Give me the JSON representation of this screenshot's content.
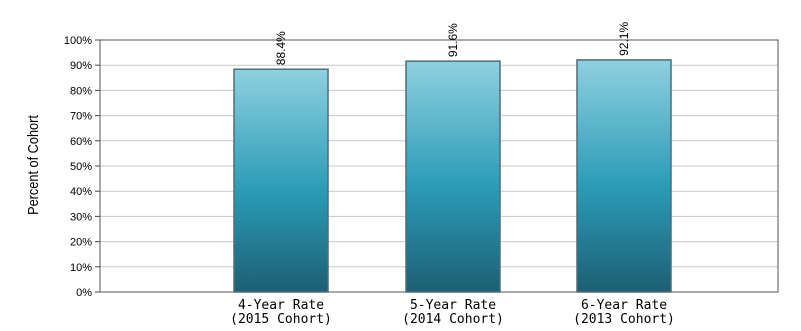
{
  "chart_data": {
    "type": "bar",
    "categories": [
      [
        "4-Year Rate",
        "(2015 Cohort)"
      ],
      [
        "5-Year Rate",
        "(2014 Cohort)"
      ],
      [
        "6-Year Rate",
        "(2013 Cohort)"
      ]
    ],
    "values": [
      88.4,
      91.6,
      92.1
    ],
    "data_labels": [
      "88.4%",
      "91.6%",
      "92.1%"
    ],
    "ylabel": "Percent of Cohort",
    "ylim": [
      0,
      100
    ],
    "yticks": [
      "0%",
      "10%",
      "20%",
      "30%",
      "40%",
      "50%",
      "60%",
      "70%",
      "80%",
      "90%",
      "100%"
    ],
    "grid": true,
    "colors": {
      "bar_top": "#8fd0e0",
      "bar_mid": "#2a9bb6",
      "bar_bottom": "#1d5f73",
      "bar_edge": "#4d6e78",
      "grid": "#c8c8c8"
    }
  }
}
